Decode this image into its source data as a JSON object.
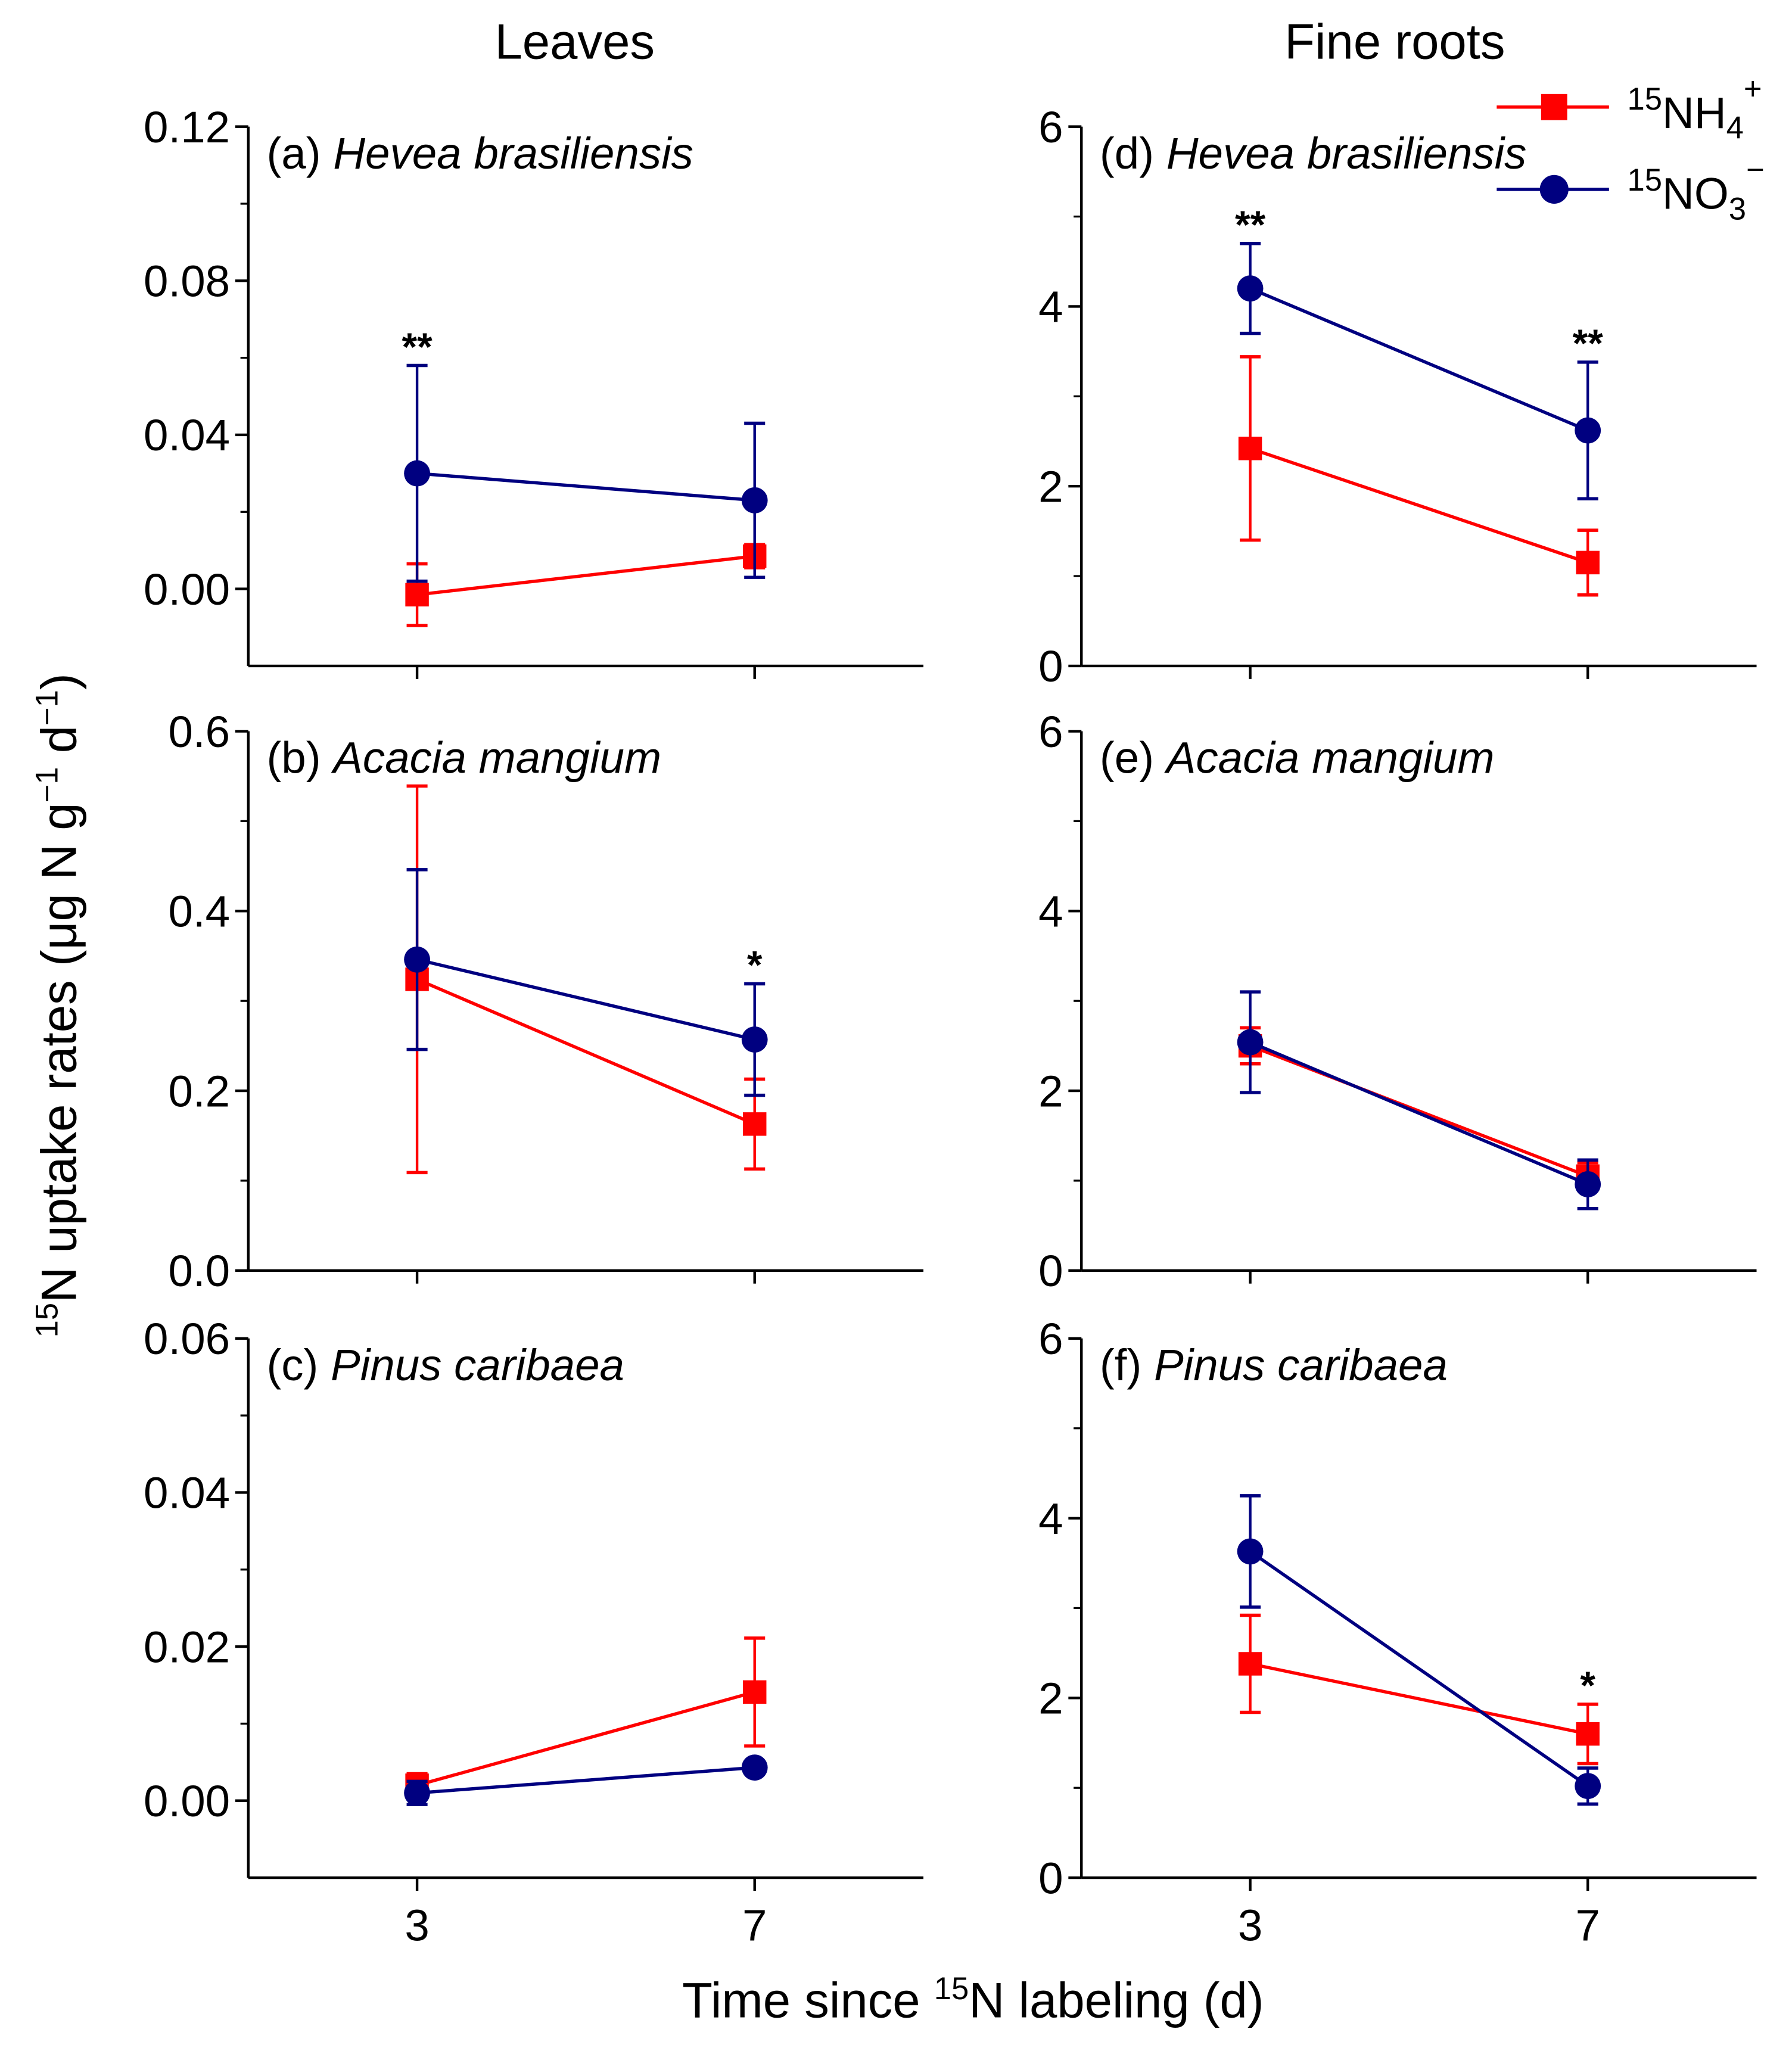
{
  "colors": {
    "nh4": "#ff0000",
    "no3": "#000080",
    "axis": "#000000"
  },
  "column_titles": [
    "Leaves",
    "Fine roots"
  ],
  "ylabel": {
    "sup": "15",
    "main": "N uptake rates (μg N g",
    "sup2": "−1",
    "mid": " d",
    "sup3": "−1",
    "end": ")"
  },
  "xlabel": {
    "pre": "Time since ",
    "sup": "15",
    "post": "N labeling (d)"
  },
  "legend": {
    "nh4": {
      "sup": "15",
      "main": "NH",
      "sub": "4",
      "charge": "+"
    },
    "no3": {
      "sup": "15",
      "main": "NO",
      "sub": "3",
      "charge": "−"
    }
  },
  "chart_data": [
    {
      "type": "line",
      "panel": "(a)",
      "species": "Hevea brasiliensis",
      "ylim": [
        -0.02,
        0.12
      ],
      "xlim": [
        1,
        9
      ],
      "yticks": [
        "0.00",
        "0.04",
        "0.08",
        "0.12"
      ],
      "ytick_values": [
        0,
        0.04,
        0.08,
        0.12
      ],
      "x": [
        3,
        7
      ],
      "xtick_labels": [
        "3",
        "7"
      ],
      "series": [
        {
          "name": "15NH4+",
          "values": [
            -0.0015,
            0.0085
          ],
          "err": [
            0.008,
            0.003
          ]
        },
        {
          "name": "15NO3-",
          "values": [
            0.03,
            0.023
          ],
          "err": [
            0.028,
            0.02
          ]
        }
      ],
      "annotations": [
        {
          "x": 3,
          "text": "**"
        }
      ]
    },
    {
      "type": "line",
      "panel": "(b)",
      "species": "Acacia mangium",
      "ylim": [
        0,
        0.6
      ],
      "xlim": [
        1,
        9
      ],
      "yticks": [
        "0.0",
        "0.2",
        "0.4",
        "0.6"
      ],
      "ytick_values": [
        0,
        0.2,
        0.4,
        0.6
      ],
      "x": [
        3,
        7
      ],
      "xtick_labels": [
        "3",
        "7"
      ],
      "series": [
        {
          "name": "15NH4+",
          "values": [
            0.324,
            0.163
          ],
          "err": [
            0.215,
            0.05
          ]
        },
        {
          "name": "15NO3-",
          "values": [
            0.346,
            0.257
          ],
          "err": [
            0.1,
            0.062
          ]
        }
      ],
      "annotations": [
        {
          "x": 7,
          "text": "*"
        }
      ]
    },
    {
      "type": "line",
      "panel": "(c)",
      "species": "Pinus caribaea",
      "ylim": [
        -0.01,
        0.06
      ],
      "xlim": [
        1,
        9
      ],
      "yticks": [
        "0.00",
        "0.02",
        "0.04",
        "0.06"
      ],
      "ytick_values": [
        0,
        0.02,
        0.04,
        0.06
      ],
      "x": [
        3,
        7
      ],
      "xtick_labels": [
        "3",
        "7"
      ],
      "series": [
        {
          "name": "15NH4+",
          "values": [
            0.002,
            0.0141
          ],
          "err": [
            0.0015,
            0.007
          ]
        },
        {
          "name": "15NO3-",
          "values": [
            0.001,
            0.0043
          ],
          "err": [
            0.0015,
            0.0005
          ]
        }
      ],
      "annotations": []
    },
    {
      "type": "line",
      "panel": "(d)",
      "species": "Hevea brasiliensis",
      "ylim": [
        0,
        6
      ],
      "xlim": [
        1,
        9
      ],
      "yticks": [
        "0",
        "2",
        "4",
        "6"
      ],
      "ytick_values": [
        0,
        2,
        4,
        6
      ],
      "x": [
        3,
        7
      ],
      "xtick_labels": [
        "3",
        "7"
      ],
      "series": [
        {
          "name": "15NH4+",
          "values": [
            2.42,
            1.15
          ],
          "err": [
            1.02,
            0.36
          ]
        },
        {
          "name": "15NO3-",
          "values": [
            4.2,
            2.62
          ],
          "err": [
            0.5,
            0.76
          ]
        }
      ],
      "annotations": [
        {
          "x": 3,
          "text": "**"
        },
        {
          "x": 7,
          "text": "**"
        }
      ]
    },
    {
      "type": "line",
      "panel": "(e)",
      "species": "Acacia mangium",
      "ylim": [
        0,
        6
      ],
      "xlim": [
        1,
        9
      ],
      "yticks": [
        "0",
        "2",
        "4",
        "6"
      ],
      "ytick_values": [
        0,
        2,
        4,
        6
      ],
      "x": [
        3,
        7
      ],
      "xtick_labels": [
        "3",
        "7"
      ],
      "series": [
        {
          "name": "15NH4+",
          "values": [
            2.5,
            1.05
          ],
          "err": [
            0.2,
            0.15
          ]
        },
        {
          "name": "15NO3-",
          "values": [
            2.54,
            0.96
          ],
          "err": [
            0.56,
            0.27
          ]
        }
      ],
      "annotations": []
    },
    {
      "type": "line",
      "panel": "(f)",
      "species": "Pinus caribaea",
      "ylim": [
        0,
        6
      ],
      "xlim": [
        1,
        9
      ],
      "yticks": [
        "0",
        "2",
        "4",
        "6"
      ],
      "ytick_values": [
        0,
        2,
        4,
        6
      ],
      "x": [
        3,
        7
      ],
      "xtick_labels": [
        "3",
        "7"
      ],
      "series": [
        {
          "name": "15NH4+",
          "values": [
            2.38,
            1.6
          ],
          "err": [
            0.54,
            0.33
          ]
        },
        {
          "name": "15NO3-",
          "values": [
            3.63,
            1.02
          ],
          "err": [
            0.62,
            0.2
          ]
        }
      ],
      "annotations": [
        {
          "x": 7,
          "text": "*"
        }
      ]
    }
  ]
}
